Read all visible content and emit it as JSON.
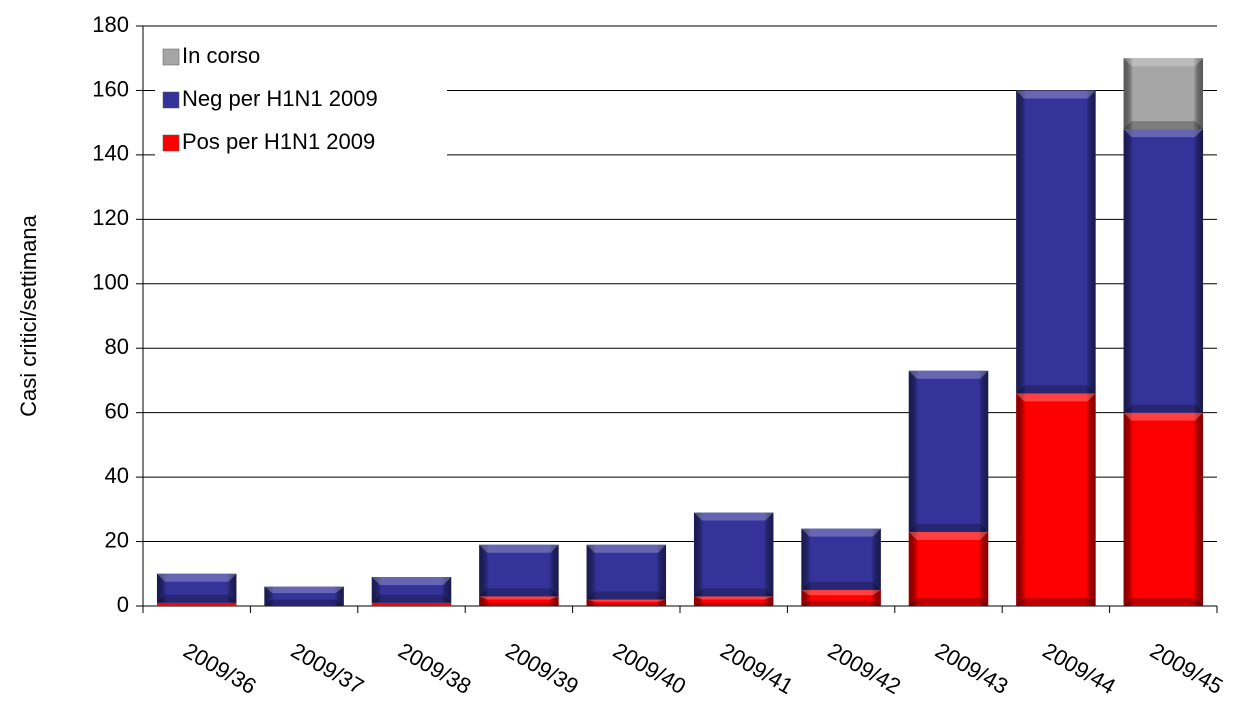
{
  "chart_data": {
    "type": "stacked_bar",
    "y_label": "Casi critici/settimana",
    "categories": [
      "2009/36",
      "2009/37",
      "2009/38",
      "2009/39",
      "2009/40",
      "2009/41",
      "2009/42",
      "2009/43",
      "2009/44",
      "2009/45"
    ],
    "series": [
      {
        "name": "Pos per H1N1 2009",
        "color": "#ff0000",
        "values": [
          1,
          0,
          1,
          3,
          2,
          3,
          5,
          23,
          66,
          60
        ]
      },
      {
        "name": "Neg per H1N1 2009",
        "color": "#333399",
        "values": [
          9,
          6,
          8,
          16,
          17,
          26,
          19,
          50,
          94,
          88
        ]
      },
      {
        "name": "In corso",
        "color": "#a6a6a6",
        "values": [
          null,
          null,
          null,
          null,
          null,
          null,
          null,
          null,
          null,
          22
        ]
      }
    ],
    "ylim": [
      0,
      180
    ],
    "yticks": [
      0,
      20,
      40,
      60,
      80,
      100,
      120,
      140,
      160,
      180
    ],
    "grid": true,
    "legend": "top-left"
  }
}
